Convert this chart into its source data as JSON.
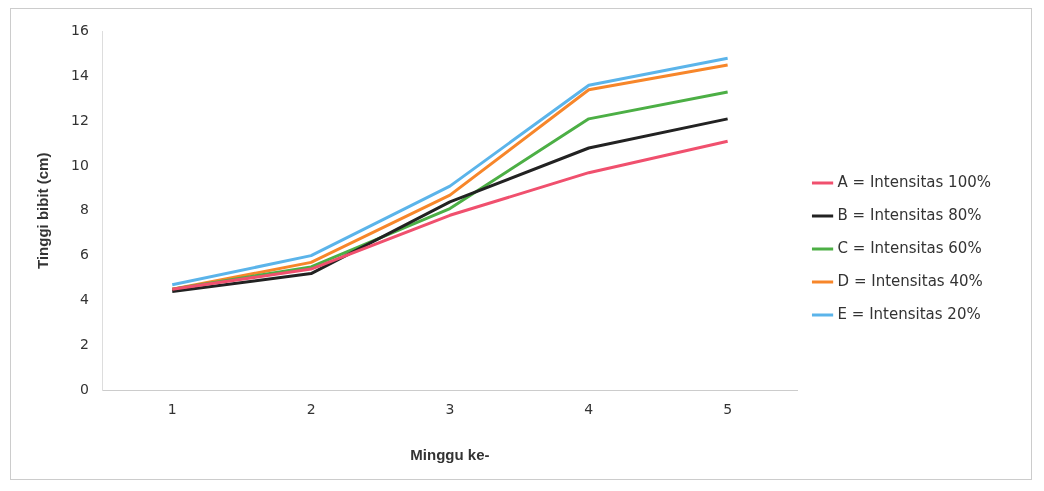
{
  "chart_data": {
    "type": "line",
    "xlabel": "Minggu ke-",
    "ylabel": "Tinggi bibit (cm)",
    "categories": [
      "1",
      "2",
      "3",
      "4",
      "5"
    ],
    "ylim": [
      0,
      16
    ],
    "yticks": [
      0,
      2,
      4,
      6,
      8,
      10,
      12,
      14,
      16
    ],
    "grid": false,
    "legend": "right",
    "marker": "none",
    "series": [
      {
        "name": "A = Intensitas 100%",
        "color": "#f0506e",
        "values": [
          4.5,
          5.4,
          7.8,
          9.7,
          11.1
        ]
      },
      {
        "name": "B = Intensitas 80%",
        "color": "#222222",
        "values": [
          4.4,
          5.2,
          8.4,
          10.8,
          12.1
        ]
      },
      {
        "name": "C = Intensitas 60%",
        "color": "#4caf45",
        "values": [
          4.5,
          5.5,
          8.1,
          12.1,
          13.3
        ]
      },
      {
        "name": "D = Intensitas 40%",
        "color": "#f7862a",
        "values": [
          4.5,
          5.7,
          8.7,
          13.4,
          14.5
        ]
      },
      {
        "name": "E = Intensitas 20%",
        "color": "#5bb4ea",
        "values": [
          4.7,
          6.0,
          9.1,
          13.6,
          14.8
        ]
      }
    ]
  }
}
